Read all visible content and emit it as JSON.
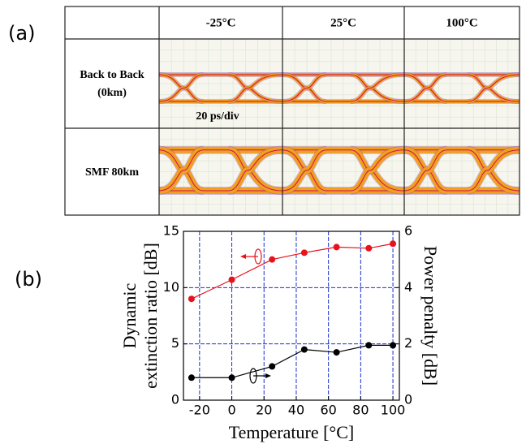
{
  "panel_labels": [
    "(a)",
    "(b)"
  ],
  "table": {
    "header": [
      "-25°C",
      "25°C",
      "100°C"
    ],
    "rows": [
      {
        "label": [
          "Back to Back",
          "(0km)"
        ]
      },
      {
        "label": [
          "SMF 80km"
        ]
      }
    ],
    "scale_note": "20 ps/div"
  },
  "chart_data": {
    "type": "line",
    "xlabel": "Temperature [°C]",
    "ylabel": [
      "Dynamic",
      "extinction ratio [dB]"
    ],
    "y2label": "Power penalty [dB]",
    "x": [
      -25,
      0,
      25,
      45,
      65,
      85,
      100
    ],
    "xlim": [
      -30,
      104
    ],
    "xticks": [
      -20,
      0,
      20,
      40,
      60,
      80,
      100
    ],
    "ylim": [
      0,
      15
    ],
    "yticks": [
      0,
      5,
      10,
      15
    ],
    "y2lim": [
      0,
      6
    ],
    "y2ticks": [
      0,
      2,
      4,
      6
    ],
    "grid": true,
    "series": [
      {
        "color": "#e8121b",
        "values": [
          9.0,
          10.7,
          12.5,
          13.1,
          13.6,
          13.5,
          13.9
        ]
      },
      {
        "color": "#000000",
        "axis": "y2",
        "values": [
          0.8,
          0.8,
          1.2,
          1.8,
          1.7,
          1.95,
          1.95
        ]
      }
    ]
  }
}
